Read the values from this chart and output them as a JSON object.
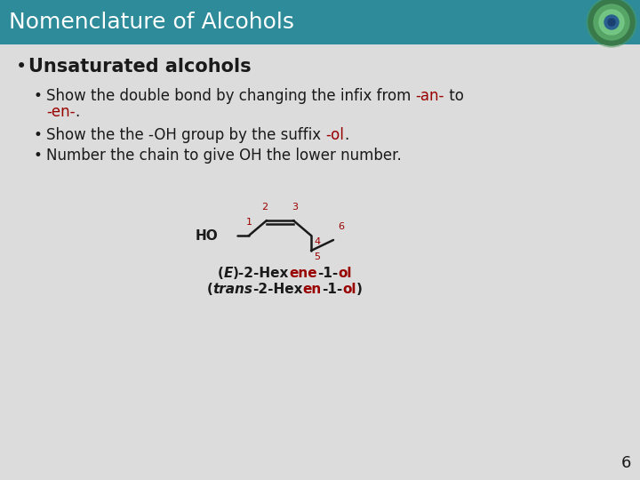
{
  "title": "Nomenclature of Alcohols",
  "title_bg": "#2E8B9A",
  "title_color": "#FFFFFF",
  "slide_bg": "#DCDCDC",
  "bullet1": "Unsaturated alcohols",
  "sub_bullet1_plain": "Show the double bond by changing the infix from ",
  "sub_bullet1_red1": "-an-",
  "sub_bullet1_mid": " to",
  "sub_bullet1_cont": "-en-",
  "sub_bullet1_end": ".",
  "sub_bullet2_plain": "Show the the -OH group by the suffix ",
  "sub_bullet2_red": "-ol",
  "sub_bullet2_end": ".",
  "sub_bullet3": "Number the chain to give OH the lower number.",
  "page_number": "6",
  "red_color": "#990000",
  "black_color": "#1a1a1a"
}
